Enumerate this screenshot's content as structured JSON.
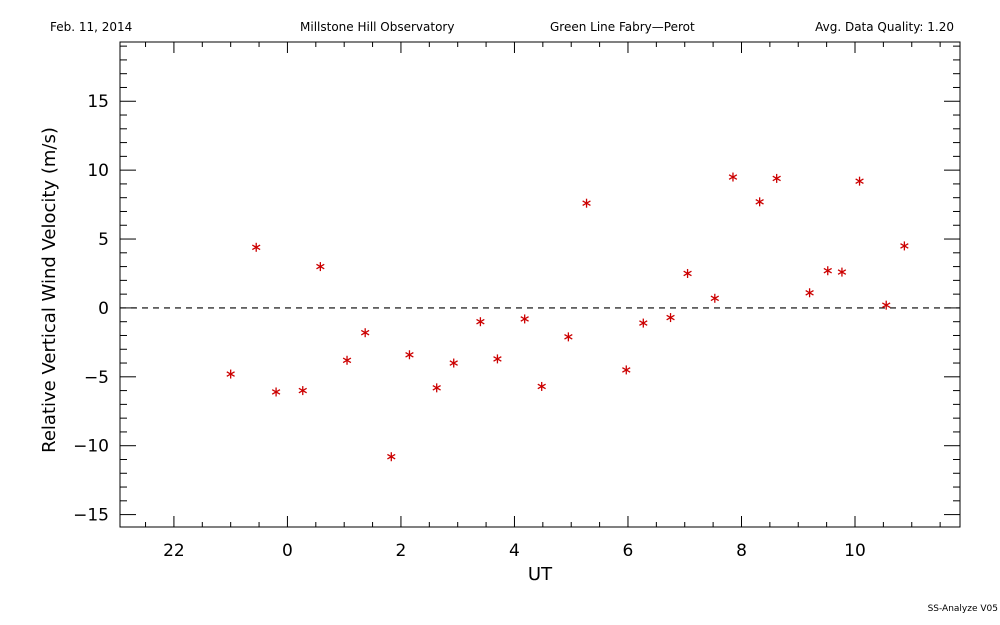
{
  "header": {
    "date": "Feb. 11, 2014",
    "observatory": "Millstone Hill Observatory",
    "instrument": "Green Line Fabry—Perot",
    "quality": "Avg. Data Quality: 1.20"
  },
  "footer": {
    "version": "SS-Analyze V05"
  },
  "colors": {
    "marker": "#cc0000",
    "axis": "#000000"
  },
  "chart_data": {
    "type": "scatter",
    "xlabel": "UT",
    "ylabel": "Relative Vertical Wind Velocity (m/s)",
    "xlim": [
      21.05,
      11.85
    ],
    "ylim": [
      -15.9,
      19.3
    ],
    "x_ticks": [
      {
        "value": 22,
        "label": "22"
      },
      {
        "value": 24,
        "label": "0"
      },
      {
        "value": 26,
        "label": "2"
      },
      {
        "value": 28,
        "label": "4"
      },
      {
        "value": 30,
        "label": "6"
      },
      {
        "value": 32,
        "label": "8"
      },
      {
        "value": 34,
        "label": "10"
      }
    ],
    "y_ticks": [
      {
        "value": 15,
        "label": "15"
      },
      {
        "value": 10,
        "label": "10"
      },
      {
        "value": 5,
        "label": "5"
      },
      {
        "value": 0,
        "label": "0"
      },
      {
        "value": -5,
        "label": "−5"
      },
      {
        "value": -10,
        "label": "−10"
      },
      {
        "value": -15,
        "label": "−15"
      }
    ],
    "reference_line": {
      "y": 0,
      "style": "dashed"
    },
    "series": [
      {
        "marker": "asterisk",
        "color": "#cc0000",
        "points": [
          {
            "x": 23.0,
            "y": -4.8
          },
          {
            "x": 23.45,
            "y": 4.4
          },
          {
            "x": 23.8,
            "y": -6.1
          },
          {
            "x": 24.27,
            "y": -6.0
          },
          {
            "x": 24.58,
            "y": 3.0
          },
          {
            "x": 25.05,
            "y": -3.8
          },
          {
            "x": 25.37,
            "y": -1.8
          },
          {
            "x": 25.83,
            "y": -10.8
          },
          {
            "x": 26.15,
            "y": -3.4
          },
          {
            "x": 26.63,
            "y": -5.8
          },
          {
            "x": 26.93,
            "y": -4.0
          },
          {
            "x": 27.4,
            "y": -1.0
          },
          {
            "x": 27.7,
            "y": -3.7
          },
          {
            "x": 28.18,
            "y": -0.8
          },
          {
            "x": 28.48,
            "y": -5.7
          },
          {
            "x": 28.95,
            "y": -2.1
          },
          {
            "x": 29.27,
            "y": 7.6
          },
          {
            "x": 29.97,
            "y": -4.5
          },
          {
            "x": 30.27,
            "y": -1.1
          },
          {
            "x": 30.75,
            "y": -0.7
          },
          {
            "x": 31.05,
            "y": 2.5
          },
          {
            "x": 31.53,
            "y": 0.7
          },
          {
            "x": 31.85,
            "y": 9.5
          },
          {
            "x": 32.32,
            "y": 7.7
          },
          {
            "x": 32.62,
            "y": 9.4
          },
          {
            "x": 33.2,
            "y": 1.1
          },
          {
            "x": 33.52,
            "y": 2.7
          },
          {
            "x": 33.77,
            "y": 2.6
          },
          {
            "x": 34.08,
            "y": 9.2
          },
          {
            "x": 34.55,
            "y": 0.2
          },
          {
            "x": 34.87,
            "y": 4.5
          }
        ]
      }
    ]
  }
}
